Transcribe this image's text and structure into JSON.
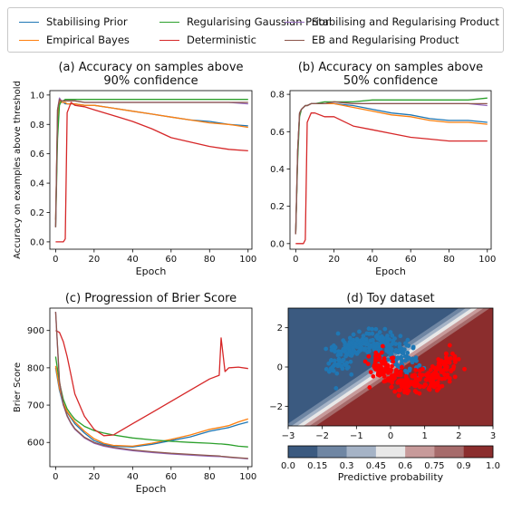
{
  "legend": {
    "items": [
      {
        "label": "Stabilising Prior",
        "color": "#1f77b4"
      },
      {
        "label": "Regularising Gaussian Prior",
        "color": "#2ca02c"
      },
      {
        "label": "Stabilising and Regularising Product",
        "color": "#9467bd"
      },
      {
        "label": "Empirical Bayes",
        "color": "#ff7f0e"
      },
      {
        "label": "Deterministic",
        "color": "#d62728"
      },
      {
        "label": "EB and Regularising Product",
        "color": "#8c564b"
      }
    ]
  },
  "chart_data": [
    {
      "id": "a",
      "type": "line",
      "title": "(a) Accuracy on samples above",
      "title_line2": "90% confidence",
      "xlabel": "Epoch",
      "ylabel": "Accuracy on examples above threshold",
      "xlim": [
        -3,
        102
      ],
      "ylim": [
        -0.05,
        1.03
      ],
      "xticks": [
        0,
        20,
        40,
        60,
        80,
        100
      ],
      "yticks": [
        0.0,
        0.2,
        0.4,
        0.6,
        0.8,
        1.0
      ],
      "ytick_labels": [
        "0.0",
        "0.2",
        "0.4",
        "0.6",
        "0.8",
        "1.0"
      ],
      "x": [
        0,
        1,
        2,
        3,
        4,
        5,
        6,
        8,
        10,
        15,
        20,
        30,
        40,
        50,
        60,
        70,
        80,
        90,
        100
      ],
      "series": [
        {
          "label_ref": 0,
          "color": "#1f77b4",
          "values": [
            0.15,
            0.8,
            0.96,
            0.95,
            0.95,
            0.94,
            0.94,
            0.94,
            0.94,
            0.93,
            0.93,
            0.91,
            0.89,
            0.87,
            0.85,
            0.83,
            0.82,
            0.8,
            0.79
          ]
        },
        {
          "label_ref": 3,
          "color": "#ff7f0e",
          "values": [
            0.15,
            0.85,
            0.96,
            0.95,
            0.95,
            0.95,
            0.94,
            0.94,
            0.94,
            0.93,
            0.93,
            0.91,
            0.89,
            0.87,
            0.85,
            0.83,
            0.81,
            0.8,
            0.78
          ]
        },
        {
          "label_ref": 1,
          "color": "#2ca02c",
          "values": [
            0.1,
            0.7,
            0.93,
            0.96,
            0.96,
            0.97,
            0.97,
            0.97,
            0.97,
            0.97,
            0.97,
            0.97,
            0.97,
            0.97,
            0.97,
            0.97,
            0.97,
            0.97,
            0.97
          ]
        },
        {
          "label_ref": 4,
          "color": "#d62728",
          "values": [
            0.0,
            0.0,
            0.0,
            0.0,
            0.0,
            0.02,
            0.88,
            0.95,
            0.93,
            0.92,
            0.9,
            0.86,
            0.82,
            0.77,
            0.71,
            0.68,
            0.65,
            0.63,
            0.62
          ]
        },
        {
          "label_ref": 2,
          "color": "#9467bd",
          "values": [
            0.1,
            0.9,
            0.98,
            0.96,
            0.96,
            0.96,
            0.96,
            0.96,
            0.96,
            0.95,
            0.95,
            0.95,
            0.95,
            0.95,
            0.95,
            0.95,
            0.95,
            0.95,
            0.94
          ]
        },
        {
          "label_ref": 5,
          "color": "#8c564b",
          "values": [
            0.1,
            0.9,
            0.97,
            0.96,
            0.96,
            0.96,
            0.96,
            0.96,
            0.96,
            0.95,
            0.95,
            0.95,
            0.95,
            0.95,
            0.95,
            0.95,
            0.95,
            0.95,
            0.95
          ]
        }
      ]
    },
    {
      "id": "b",
      "type": "line",
      "title": "(b) Accuracy on samples above",
      "title_line2": "50% confidence",
      "xlabel": "Epoch",
      "ylabel": "",
      "xlim": [
        -3,
        102
      ],
      "ylim": [
        -0.03,
        0.82
      ],
      "xticks": [
        0,
        20,
        40,
        60,
        80,
        100
      ],
      "yticks": [
        0.0,
        0.2,
        0.4,
        0.6,
        0.8
      ],
      "ytick_labels": [
        "0.0",
        "0.2",
        "0.4",
        "0.6",
        "0.8"
      ],
      "x": [
        0,
        1,
        2,
        3,
        4,
        5,
        6,
        8,
        10,
        15,
        20,
        30,
        40,
        50,
        60,
        70,
        80,
        90,
        100
      ],
      "series": [
        {
          "label_ref": 0,
          "color": "#1f77b4",
          "values": [
            0.05,
            0.5,
            0.7,
            0.72,
            0.73,
            0.74,
            0.74,
            0.75,
            0.75,
            0.75,
            0.75,
            0.74,
            0.72,
            0.7,
            0.69,
            0.67,
            0.66,
            0.66,
            0.65
          ]
        },
        {
          "label_ref": 3,
          "color": "#ff7f0e",
          "values": [
            0.05,
            0.5,
            0.7,
            0.72,
            0.73,
            0.74,
            0.74,
            0.75,
            0.75,
            0.75,
            0.75,
            0.73,
            0.71,
            0.69,
            0.68,
            0.66,
            0.65,
            0.65,
            0.64
          ]
        },
        {
          "label_ref": 1,
          "color": "#2ca02c",
          "values": [
            0.05,
            0.45,
            0.68,
            0.72,
            0.73,
            0.74,
            0.74,
            0.75,
            0.75,
            0.76,
            0.76,
            0.76,
            0.77,
            0.77,
            0.77,
            0.77,
            0.77,
            0.77,
            0.78
          ]
        },
        {
          "label_ref": 4,
          "color": "#d62728",
          "values": [
            0.0,
            0.0,
            0.0,
            0.0,
            0.0,
            0.02,
            0.65,
            0.7,
            0.7,
            0.68,
            0.68,
            0.63,
            0.61,
            0.59,
            0.57,
            0.56,
            0.55,
            0.55,
            0.55
          ]
        },
        {
          "label_ref": 2,
          "color": "#9467bd",
          "values": [
            0.05,
            0.5,
            0.7,
            0.72,
            0.73,
            0.74,
            0.74,
            0.75,
            0.75,
            0.75,
            0.76,
            0.75,
            0.75,
            0.75,
            0.75,
            0.75,
            0.75,
            0.75,
            0.74
          ]
        },
        {
          "label_ref": 5,
          "color": "#8c564b",
          "values": [
            0.05,
            0.5,
            0.7,
            0.72,
            0.73,
            0.74,
            0.74,
            0.75,
            0.75,
            0.75,
            0.76,
            0.75,
            0.75,
            0.75,
            0.75,
            0.75,
            0.75,
            0.75,
            0.75
          ]
        }
      ]
    },
    {
      "id": "c",
      "type": "line",
      "title": "(c) Progression of Brier Score",
      "xlabel": "Epoch",
      "ylabel": "Brier Score",
      "xlim": [
        -3,
        102
      ],
      "ylim": [
        535,
        960
      ],
      "xticks": [
        0,
        20,
        40,
        60,
        80,
        100
      ],
      "yticks": [
        600,
        700,
        800,
        900
      ],
      "ytick_labels": [
        "600",
        "700",
        "800",
        "900"
      ],
      "x": [
        0,
        2,
        4,
        6,
        8,
        10,
        15,
        20,
        25,
        30,
        40,
        50,
        60,
        70,
        80,
        85,
        86,
        88,
        90,
        95,
        100
      ],
      "series": [
        {
          "label_ref": 0,
          "color": "#1f77b4",
          "values": [
            800,
            740,
            700,
            680,
            665,
            650,
            625,
            605,
            595,
            590,
            588,
            595,
            605,
            615,
            630,
            635,
            636,
            638,
            640,
            648,
            655
          ]
        },
        {
          "label_ref": 3,
          "color": "#ff7f0e",
          "values": [
            805,
            745,
            705,
            683,
            668,
            655,
            630,
            610,
            598,
            592,
            590,
            598,
            608,
            620,
            635,
            640,
            641,
            643,
            645,
            655,
            663
          ]
        },
        {
          "label_ref": 1,
          "color": "#2ca02c",
          "values": [
            830,
            760,
            715,
            690,
            675,
            662,
            643,
            632,
            625,
            620,
            612,
            607,
            603,
            600,
            598,
            596,
            596,
            595,
            594,
            590,
            588
          ]
        },
        {
          "label_ref": 4,
          "color": "#d62728",
          "values": [
            900,
            895,
            870,
            830,
            780,
            730,
            670,
            635,
            618,
            620,
            650,
            680,
            710,
            740,
            770,
            780,
            880,
            790,
            800,
            802,
            798
          ]
        },
        {
          "label_ref": 2,
          "color": "#9467bd",
          "values": [
            950,
            760,
            700,
            670,
            650,
            635,
            612,
            598,
            590,
            585,
            578,
            573,
            569,
            566,
            563,
            562,
            562,
            561,
            560,
            558,
            556
          ]
        },
        {
          "label_ref": 5,
          "color": "#8c564b",
          "values": [
            950,
            765,
            702,
            672,
            652,
            637,
            614,
            600,
            592,
            587,
            580,
            575,
            571,
            568,
            565,
            564,
            563,
            562,
            561,
            559,
            557
          ]
        }
      ]
    },
    {
      "id": "d",
      "type": "scatter",
      "title": "(d) Toy dataset",
      "xlim": [
        -3,
        3
      ],
      "ylim": [
        -3,
        3
      ],
      "xticks": [
        -3,
        -2,
        -1,
        0,
        1,
        2,
        3
      ],
      "xtick_labels": [
        "−3",
        "−2",
        "−1",
        "0",
        "1",
        "2",
        "3"
      ],
      "yticks": [
        -2,
        0,
        2
      ],
      "ytick_labels": [
        "−2",
        "0",
        "2"
      ],
      "background_levels": [
        "#3b5a80",
        "#6f86a3",
        "#a5b3c6",
        "#e8e8e8",
        "#c79a9a",
        "#a66b6b",
        "#8b2d2d"
      ],
      "class_colors": [
        "#1f77b4",
        "#ff0000"
      ],
      "colorbar": {
        "label": "Predictive probability",
        "ticks": [
          "0.0",
          "0.15",
          "0.3",
          "0.45",
          "0.6",
          "0.75",
          "0.9",
          "1.0"
        ]
      }
    }
  ]
}
